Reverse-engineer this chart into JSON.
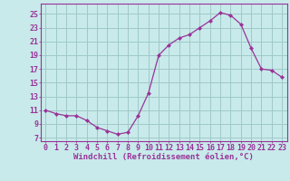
{
  "x": [
    0,
    1,
    2,
    3,
    4,
    5,
    6,
    7,
    8,
    9,
    10,
    11,
    12,
    13,
    14,
    15,
    16,
    17,
    18,
    19,
    20,
    21,
    22,
    23
  ],
  "y": [
    11.0,
    10.5,
    10.2,
    10.2,
    9.5,
    8.5,
    8.0,
    7.5,
    7.8,
    10.2,
    13.5,
    19.0,
    20.5,
    21.5,
    22.0,
    23.0,
    24.0,
    25.2,
    24.8,
    23.5,
    20.0,
    17.0,
    16.8,
    15.8
  ],
  "line_color": "#993399",
  "marker": "D",
  "marker_size": 2.0,
  "bg_color": "#c8eaea",
  "grid_color": "#a0c8c8",
  "yticks": [
    7,
    9,
    11,
    13,
    15,
    17,
    19,
    21,
    23,
    25
  ],
  "xlabel": "Windchill (Refroidissement éolien,°C)",
  "xlim": [
    -0.5,
    23.5
  ],
  "ylim": [
    6.5,
    26.5
  ],
  "xlabel_fontsize": 6.5,
  "tick_fontsize": 6.0,
  "linewidth": 0.9
}
